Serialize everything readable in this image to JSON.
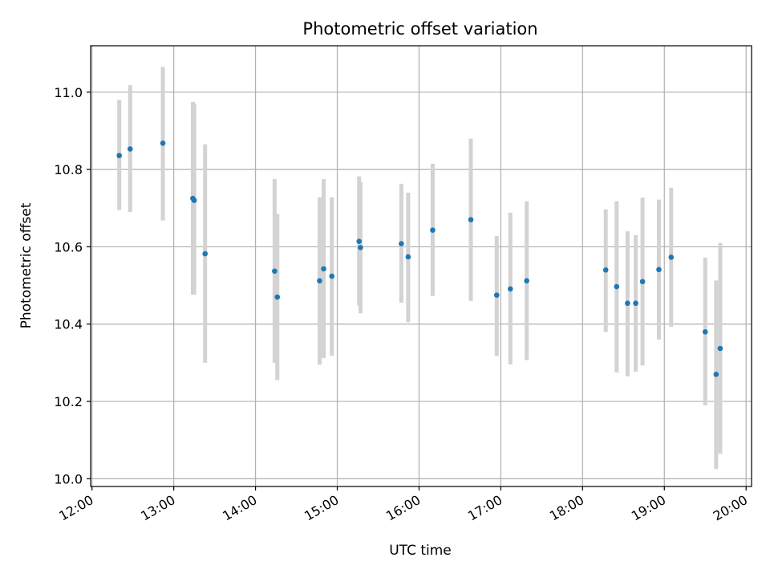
{
  "chart_data": {
    "type": "scatter",
    "title": "Photometric offset variation",
    "xlabel": "UTC time",
    "ylabel": "Photometric offset",
    "xlim": [
      "11:59",
      "20:04"
    ],
    "ylim": [
      9.98,
      11.12
    ],
    "xticks": [
      "12:00",
      "13:00",
      "14:00",
      "15:00",
      "16:00",
      "17:00",
      "18:00",
      "19:00",
      "20:00"
    ],
    "yticks": [
      "10.0",
      "10.2",
      "10.4",
      "10.6",
      "10.8",
      "11.0"
    ],
    "grid": true,
    "marker_color": "#1f77b4",
    "errorbar_color": "#d3d3d3",
    "points": [
      {
        "t": "12:20",
        "y": 10.836,
        "lo": 10.695,
        "hi": 10.98
      },
      {
        "t": "12:28",
        "y": 10.853,
        "lo": 10.69,
        "hi": 11.018
      },
      {
        "t": "12:52",
        "y": 10.868,
        "lo": 10.668,
        "hi": 11.065
      },
      {
        "t": "13:14",
        "y": 10.725,
        "lo": 10.476,
        "hi": 10.975
      },
      {
        "t": "13:15",
        "y": 10.72,
        "lo": 10.476,
        "hi": 10.97
      },
      {
        "t": "13:23",
        "y": 10.582,
        "lo": 10.3,
        "hi": 10.865
      },
      {
        "t": "14:14",
        "y": 10.537,
        "lo": 10.3,
        "hi": 10.775
      },
      {
        "t": "14:16",
        "y": 10.47,
        "lo": 10.255,
        "hi": 10.685
      },
      {
        "t": "14:47",
        "y": 10.512,
        "lo": 10.295,
        "hi": 10.728
      },
      {
        "t": "14:50",
        "y": 10.543,
        "lo": 10.312,
        "hi": 10.775
      },
      {
        "t": "14:56",
        "y": 10.524,
        "lo": 10.318,
        "hi": 10.728
      },
      {
        "t": "15:16",
        "y": 10.614,
        "lo": 10.448,
        "hi": 10.782
      },
      {
        "t": "15:17",
        "y": 10.598,
        "lo": 10.428,
        "hi": 10.768
      },
      {
        "t": "15:47",
        "y": 10.608,
        "lo": 10.455,
        "hi": 10.763
      },
      {
        "t": "15:52",
        "y": 10.574,
        "lo": 10.405,
        "hi": 10.74
      },
      {
        "t": "16:10",
        "y": 10.643,
        "lo": 10.473,
        "hi": 10.815
      },
      {
        "t": "16:38",
        "y": 10.67,
        "lo": 10.46,
        "hi": 10.88
      },
      {
        "t": "16:57",
        "y": 10.475,
        "lo": 10.318,
        "hi": 10.628
      },
      {
        "t": "17:07",
        "y": 10.491,
        "lo": 10.296,
        "hi": 10.688
      },
      {
        "t": "17:19",
        "y": 10.512,
        "lo": 10.307,
        "hi": 10.718
      },
      {
        "t": "18:17",
        "y": 10.54,
        "lo": 10.38,
        "hi": 10.697
      },
      {
        "t": "18:25",
        "y": 10.497,
        "lo": 10.275,
        "hi": 10.718
      },
      {
        "t": "18:33",
        "y": 10.454,
        "lo": 10.265,
        "hi": 10.64
      },
      {
        "t": "18:39",
        "y": 10.454,
        "lo": 10.277,
        "hi": 10.63
      },
      {
        "t": "18:44",
        "y": 10.51,
        "lo": 10.293,
        "hi": 10.727
      },
      {
        "t": "18:56",
        "y": 10.541,
        "lo": 10.36,
        "hi": 10.722
      },
      {
        "t": "19:05",
        "y": 10.573,
        "lo": 10.393,
        "hi": 10.753
      },
      {
        "t": "19:30",
        "y": 10.38,
        "lo": 10.19,
        "hi": 10.572
      },
      {
        "t": "19:38",
        "y": 10.27,
        "lo": 10.025,
        "hi": 10.513
      },
      {
        "t": "19:41",
        "y": 10.337,
        "lo": 10.065,
        "hi": 10.61
      }
    ]
  }
}
